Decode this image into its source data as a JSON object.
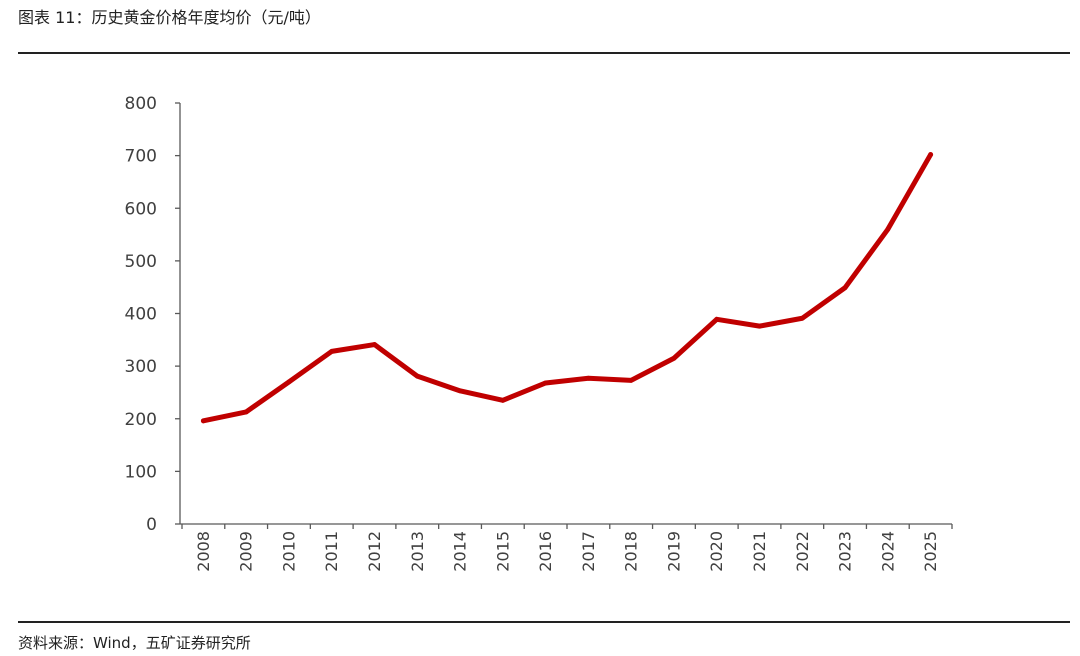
{
  "header": {
    "title": "图表 11：历史黄金价格年度均价（元/吨）"
  },
  "footer": {
    "source": "资料来源：Wind，五矿证券研究所"
  },
  "chart_data": {
    "type": "line",
    "title": "",
    "xlabel": "",
    "ylabel": "",
    "categories": [
      "2008",
      "2009",
      "2010",
      "2011",
      "2012",
      "2013",
      "2014",
      "2015",
      "2016",
      "2017",
      "2018",
      "2019",
      "2020",
      "2021",
      "2022",
      "2023",
      "2024",
      "2025"
    ],
    "series": [
      {
        "values": [
          196,
          213,
          270,
          328,
          341,
          281,
          253,
          235,
          268,
          277,
          273,
          315,
          389,
          376,
          391,
          449,
          560,
          702
        ],
        "color": "#c00000"
      }
    ],
    "ylim": [
      0,
      800
    ],
    "yticks": [
      0,
      100,
      200,
      300,
      400,
      500,
      600,
      700,
      800
    ],
    "grid": false,
    "legend": "none"
  }
}
